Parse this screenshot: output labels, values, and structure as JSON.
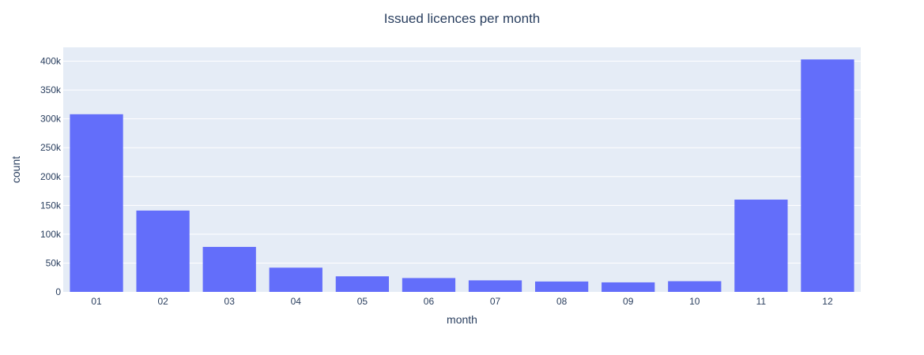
{
  "chart_data": {
    "type": "bar",
    "title": "Issued licences per month",
    "xlabel": "month",
    "ylabel": "count",
    "categories": [
      "01",
      "02",
      "03",
      "04",
      "05",
      "06",
      "07",
      "08",
      "09",
      "10",
      "11",
      "12"
    ],
    "values": [
      308000,
      141000,
      78000,
      42000,
      27000,
      24000,
      20000,
      18000,
      16500,
      18500,
      160000,
      403000
    ],
    "ylim": [
      0,
      424000
    ],
    "yticks": [
      0,
      50000,
      100000,
      150000,
      200000,
      250000,
      300000,
      350000,
      400000
    ],
    "ytick_labels": [
      "0",
      "50k",
      "100k",
      "150k",
      "200k",
      "250k",
      "300k",
      "350k",
      "400k"
    ],
    "grid": true,
    "legend": "none",
    "colors": {
      "bar": "#636efa",
      "plot_bg": "#e5ecf6",
      "grid": "#ffffff",
      "text": "#2a3f5f"
    }
  }
}
